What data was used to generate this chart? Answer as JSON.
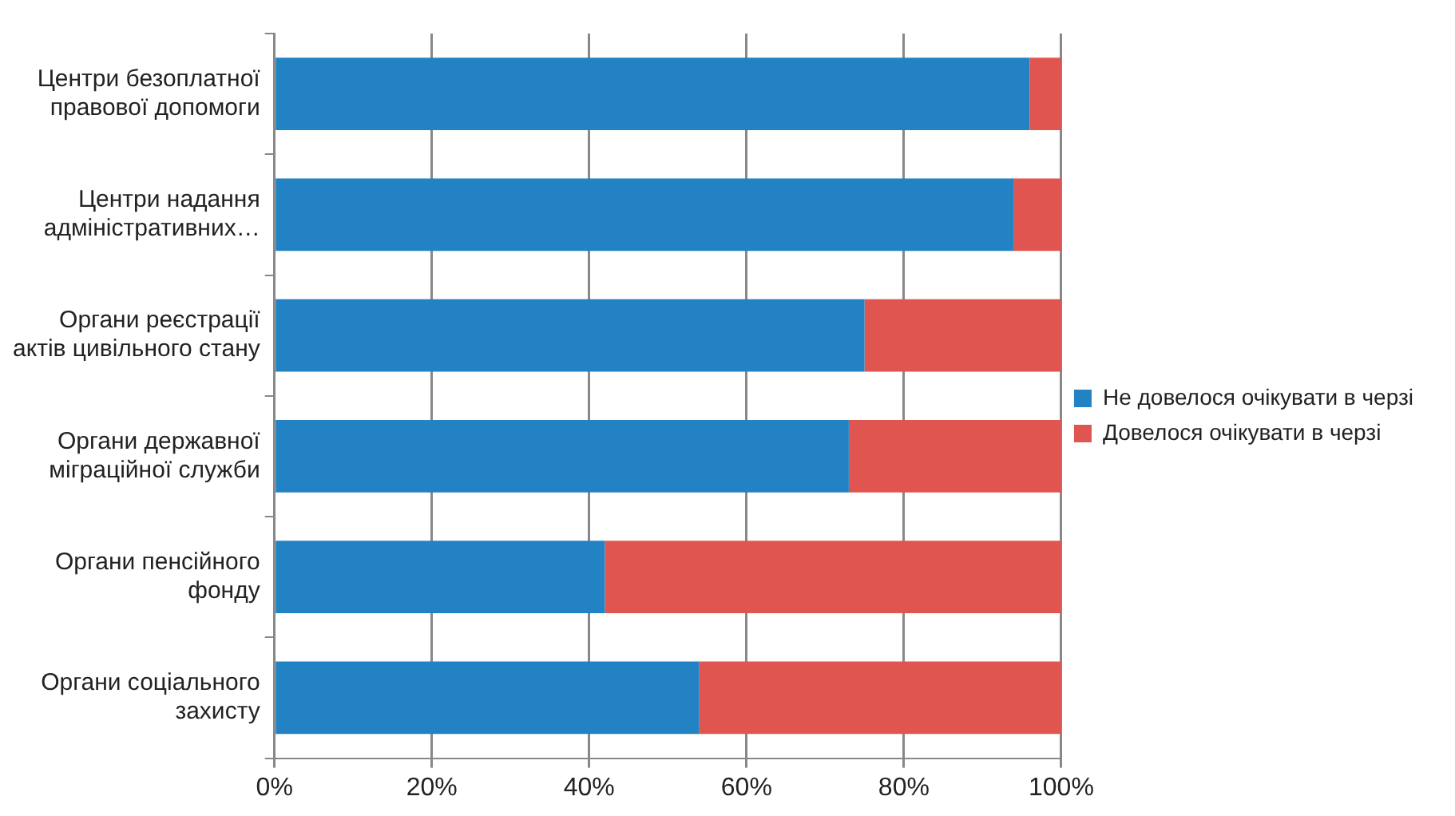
{
  "chart_data": {
    "type": "bar",
    "orientation": "horizontal",
    "stacked": true,
    "categories": [
      "Центри безоплатної правової допомоги",
      "Центри надання адміністративних…",
      "Органи реєстрації актів цивільного стану",
      "Органи державної міграційної служби",
      "Органи пенсійного фонду",
      "Органи соціального захисту"
    ],
    "series": [
      {
        "name": "Не довелося очікувати в черзі",
        "color": "#2382c4",
        "values": [
          96,
          94,
          75,
          73,
          42,
          54
        ]
      },
      {
        "name": "Довелося очікувати в черзі",
        "color": "#e05550",
        "values": [
          4,
          6,
          25,
          27,
          58,
          46
        ]
      }
    ],
    "xlim": [
      0,
      100
    ],
    "xticks": [
      {
        "value": 0,
        "label": "0%"
      },
      {
        "value": 20,
        "label": "20%"
      },
      {
        "value": 40,
        "label": "40%"
      },
      {
        "value": 60,
        "label": "60%"
      },
      {
        "value": 80,
        "label": "80%"
      },
      {
        "value": 100,
        "label": "100%"
      }
    ],
    "grid": "x",
    "legend": "right"
  }
}
